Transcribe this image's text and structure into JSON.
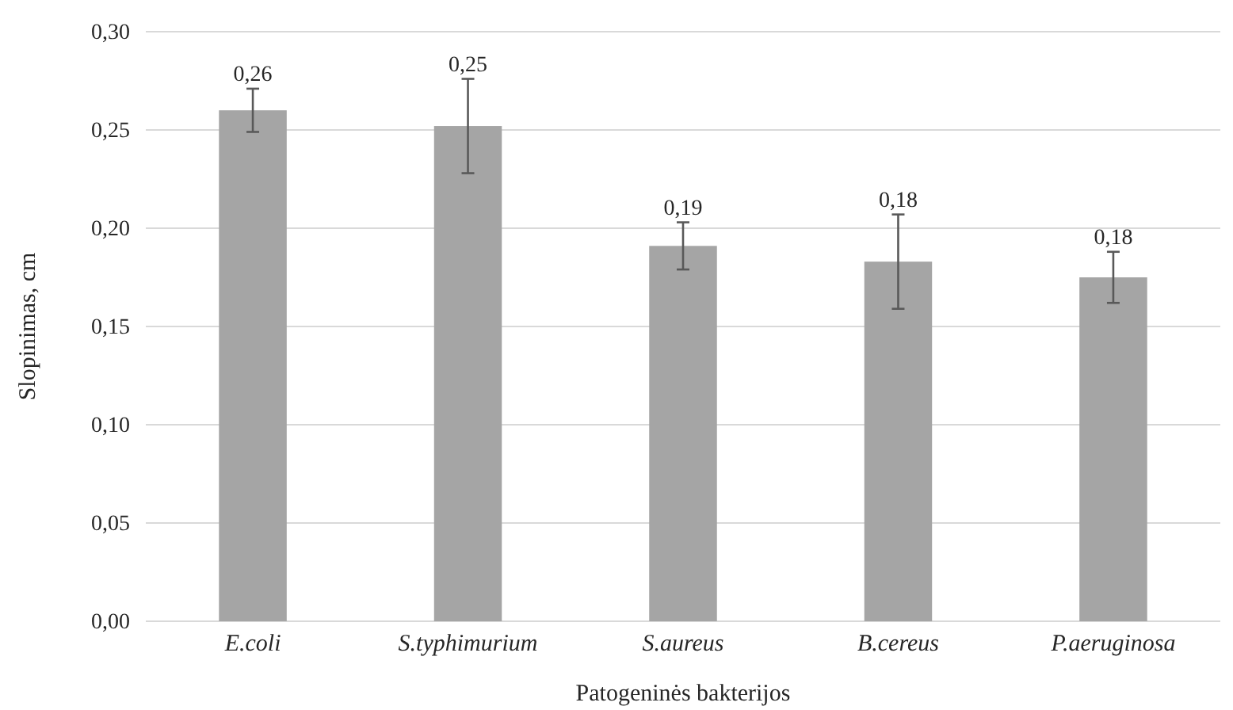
{
  "chart_data": {
    "type": "bar",
    "xlabel": "Patogeninės bakterijos",
    "ylabel": "Slopinimas, cm",
    "categories": [
      "E.coli",
      "S.typhimurium",
      "S.aureus",
      "B.cereus",
      "P.aeruginosa"
    ],
    "values": [
      0.26,
      0.252,
      0.191,
      0.183,
      0.175
    ],
    "errors": [
      0.011,
      0.024,
      0.012,
      0.024,
      0.013
    ],
    "value_labels": [
      "0,26",
      "0,25",
      "0,19",
      "0,18",
      "0,18"
    ],
    "color": "#a5a5a5",
    "ylim": [
      0,
      0.3
    ],
    "yticks": [
      {
        "value": 0,
        "label": "0,00"
      },
      {
        "value": 0.05,
        "label": "0,05"
      },
      {
        "value": 0.1,
        "label": "0,10"
      },
      {
        "value": 0.15,
        "label": "0,15"
      },
      {
        "value": 0.2,
        "label": "0,20"
      },
      {
        "value": 0.25,
        "label": "0,25"
      },
      {
        "value": 0.3,
        "label": "0,30"
      }
    ],
    "grid": "y"
  }
}
